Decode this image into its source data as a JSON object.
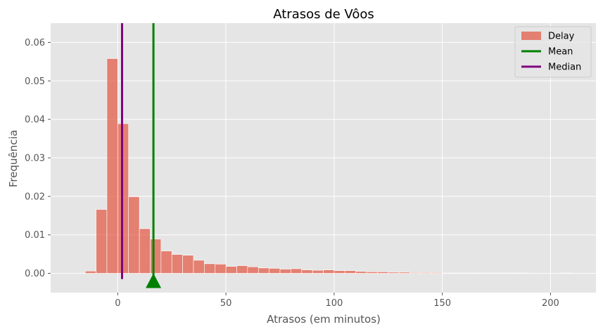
{
  "chart_data": {
    "type": "bar",
    "title": "Atrasos de Vôos",
    "xlabel": "Atrasos (em minutos)",
    "ylabel": "Frequência",
    "xlim": [
      -31,
      221
    ],
    "ylim": [
      -0.005,
      0.065
    ],
    "x_ticks": [
      0,
      50,
      100,
      150,
      200
    ],
    "x_tick_labels": [
      "0",
      "50",
      "100",
      "150",
      "200"
    ],
    "y_ticks": [
      0.0,
      0.01,
      0.02,
      0.03,
      0.04,
      0.05,
      0.06
    ],
    "y_tick_labels": [
      "0.00",
      "0.01",
      "0.02",
      "0.03",
      "0.04",
      "0.05",
      "0.06"
    ],
    "grid": true,
    "legend_position": "top-right",
    "legend": [
      {
        "label": "Delay",
        "kind": "patch",
        "color": "#e24a33"
      },
      {
        "label": "Mean",
        "kind": "line",
        "color": "#008000"
      },
      {
        "label": "Median",
        "kind": "line",
        "color": "#800080"
      }
    ],
    "histogram": {
      "series_name": "Delay",
      "color": "#e24a33",
      "alpha": 0.65,
      "bin_edges": [
        -15,
        -10,
        -5,
        0,
        5,
        10,
        15,
        20,
        25,
        30,
        35,
        40,
        45,
        50,
        55,
        60,
        65,
        70,
        75,
        80,
        85,
        90,
        95,
        100,
        105,
        110,
        115,
        120,
        125,
        130,
        135,
        140,
        145,
        150,
        155,
        160,
        165,
        170,
        175,
        180,
        185,
        190,
        195,
        200,
        205,
        210
      ],
      "values": [
        0.0006,
        0.0166,
        0.0558,
        0.0389,
        0.0199,
        0.0116,
        0.0089,
        0.0058,
        0.0049,
        0.0047,
        0.0034,
        0.0025,
        0.0024,
        0.0018,
        0.002,
        0.0017,
        0.0014,
        0.0013,
        0.0011,
        0.0012,
        0.0009,
        0.0008,
        0.0009,
        0.0007,
        0.0007,
        0.0005,
        0.0004,
        0.0004,
        0.0003,
        0.0003,
        0.0002,
        0.0002,
        0.0002,
        0.0001,
        0.0001,
        0.0001,
        0.0001,
        0.0001,
        0.0001,
        0.0001,
        0.0001,
        0.0,
        0.0,
        0.0,
        0.0001
      ]
    },
    "mean": {
      "label": "Mean",
      "value": 16.5,
      "color": "#008000"
    },
    "median": {
      "label": "Median",
      "value": 2,
      "color": "#800080"
    },
    "mean_marker": {
      "x": 16.5,
      "y": -0.002,
      "shape": "triangle",
      "color": "#008000"
    }
  }
}
